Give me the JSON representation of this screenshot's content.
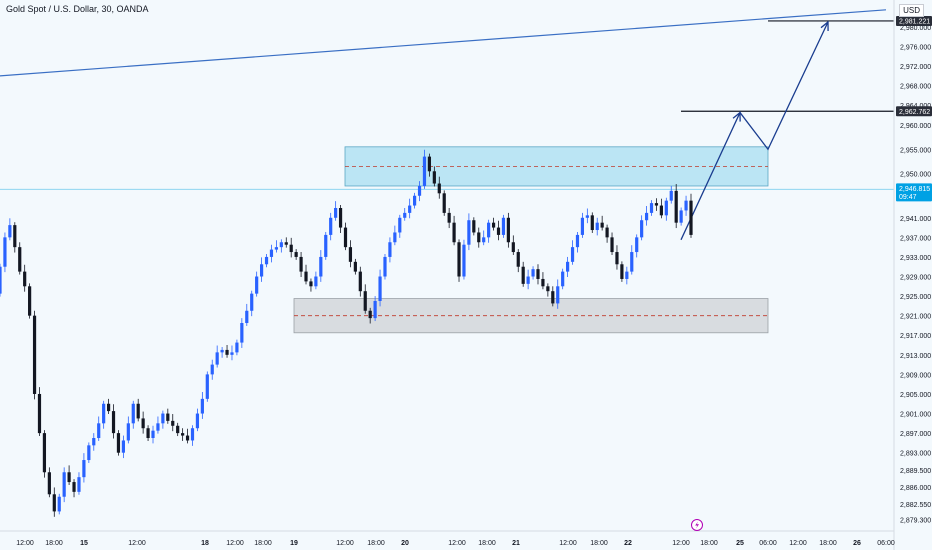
{
  "header": {
    "title": "Gold Spot / U.S. Dollar, 30, OANDA",
    "currency": "USD"
  },
  "colors": {
    "up": "#2962ff",
    "down": "#131722",
    "resistance_zone": "#a8def0",
    "support_zone": "#cfd2d6",
    "projection": "#1a3d8f",
    "background": "#f3f9fd",
    "current_price_tag": "#00a1e4",
    "dark_tag": "#2a2e39",
    "event_icon": "#b000b5"
  },
  "chart_data": {
    "type": "candlestick",
    "title": "Gold Spot / U.S. Dollar, 30, OANDA",
    "ylim": [
      2877.0,
      2985.5
    ],
    "y_ticks": [
      2879.3,
      2882.55,
      2886.0,
      2889.5,
      2893.0,
      2897.0,
      2901.0,
      2905.0,
      2909.0,
      2913.0,
      2917.0,
      2921.0,
      2925.0,
      2929.0,
      2933.0,
      2937.0,
      2941.0,
      2950.0,
      2955.0,
      2960.0,
      2964.0,
      2968.0,
      2972.0,
      2976.0,
      2980.0
    ],
    "y_tick_labels": [
      "2,879.300",
      "2,882.550",
      "2,886.000",
      "2,889.500",
      "2,893.000",
      "2,897.000",
      "2,901.000",
      "2,905.000",
      "2,909.000",
      "2,913.000",
      "2,917.000",
      "2,921.000",
      "2,925.000",
      "2,929.000",
      "2,933.000",
      "2,937.000",
      "2,941.000",
      "2,950.000",
      "2,955.000",
      "2,960.000",
      "2,964.000",
      "2,968.000",
      "2,972.000",
      "2,976.000",
      "2,980.000"
    ],
    "x_ticks": [
      "12:00",
      "18:00",
      "15",
      "12:00",
      "18",
      "12:00",
      "18:00",
      "19",
      "12:00",
      "18:00",
      "20",
      "12:00",
      "18:00",
      "21",
      "12:00",
      "18:00",
      "22",
      "12:00",
      "18:00",
      "25",
      "06:00",
      "12:00",
      "18:00",
      "26",
      "06:00"
    ],
    "bold_x_ticks": [
      "15",
      "18",
      "19",
      "20",
      "21",
      "22",
      "25",
      "26"
    ],
    "price_path": [
      [
        2925.5,
        2931.0,
        2937.0,
        2939.5,
        2935.0,
        2930.0,
        2927.0,
        2921.0,
        2905.0,
        2897.0,
        2889.0,
        2884.5,
        2881.0,
        2884.0,
        2889.0,
        2887.0,
        2885.0,
        2888.0,
        2891.5,
        2894.5,
        2896.0,
        2899.0,
        2903.0,
        2901.5,
        2897.0,
        2893.0,
        2895.5,
        2899.0,
        2903.0,
        2900.0,
        2898.0,
        2896.0,
        2897.5,
        2899.0,
        2901.0,
        2899.5,
        2898.5,
        2897.0,
        2896.5,
        2895.5,
        2898.0,
        2901.0,
        2904.0,
        2909.0,
        2911.0,
        2913.5,
        2914.0,
        2913.0,
        2913.5,
        2915.5,
        2919.5,
        2922.0,
        2925.5,
        2929.0,
        2931.5,
        2933.0,
        2934.5,
        2935.0,
        2936.0,
        2935.5,
        2934.0,
        2933.0,
        2930.0,
        2928.0,
        2927.0,
        2929.0,
        2933.0,
        2937.5,
        2941.0,
        2943.0,
        2939.0,
        2935.0,
        2932.0,
        2930.0,
        2926.0,
        2922.0,
        2920.5,
        2924.0,
        2929.0,
        2933.0,
        2936.0,
        2938.0,
        2941.0,
        2942.0,
        2943.5,
        2945.5,
        2947.5,
        2953.5,
        2950.5,
        2948.0,
        2946.0,
        2942.0,
        2940.0,
        2936.0,
        2929.0,
        2935.5,
        2940.5,
        2938.0,
        2936.0,
        2937.0,
        2940.0,
        2939.0,
        2937.5,
        2941.0,
        2936.0,
        2934.0,
        2931.0,
        2927.5,
        2929.0,
        2930.5,
        2928.5,
        2927.0,
        2926.0,
        2923.5,
        2927.0,
        2930.0,
        2932.0,
        2935.0,
        2937.5,
        2941.0,
        2941.5,
        2938.5,
        2940.0,
        2939.0,
        2937.0,
        2934.0,
        2931.5,
        2928.5,
        2930.0,
        2934.0,
        2937.0,
        2940.5,
        2942.0,
        2944.0,
        2943.5,
        2941.5,
        2944.5,
        2946.5,
        2940.0,
        2942.5,
        2944.5
      ],
      [
        2931.0,
        2937.0,
        2939.5,
        2935.0,
        2930.0,
        2927.0,
        2921.0,
        2905.0,
        2897.0,
        2889.0,
        2884.5,
        2881.0,
        2884.0,
        2889.0,
        2887.0,
        2885.0,
        2888.0,
        2891.5,
        2894.5,
        2896.0,
        2899.0,
        2903.0,
        2901.5,
        2897.0,
        2893.0,
        2895.5,
        2899.0,
        2903.0,
        2900.0,
        2898.0,
        2896.0,
        2897.5,
        2899.0,
        2901.0,
        2899.5,
        2898.5,
        2897.0,
        2896.5,
        2895.5,
        2898.0,
        2901.0,
        2904.0,
        2909.0,
        2911.0,
        2913.5,
        2914.0,
        2913.0,
        2913.5,
        2915.5,
        2919.5,
        2922.0,
        2925.5,
        2929.0,
        2931.5,
        2933.0,
        2934.5,
        2935.0,
        2936.0,
        2935.5,
        2934.0,
        2933.0,
        2930.0,
        2928.0,
        2927.0,
        2929.0,
        2933.0,
        2937.5,
        2941.0,
        2943.0,
        2939.0,
        2935.0,
        2932.0,
        2930.0,
        2926.0,
        2922.0,
        2920.5,
        2924.0,
        2929.0,
        2933.0,
        2936.0,
        2938.0,
        2941.0,
        2942.0,
        2943.5,
        2945.5,
        2947.5,
        2953.5,
        2950.5,
        2948.0,
        2946.0,
        2942.0,
        2940.0,
        2936.0,
        2929.0,
        2935.5,
        2940.5,
        2938.0,
        2936.0,
        2937.0,
        2940.0,
        2939.0,
        2937.5,
        2941.0,
        2936.0,
        2934.0,
        2931.0,
        2927.5,
        2929.0,
        2930.5,
        2928.5,
        2927.0,
        2926.0,
        2923.5,
        2927.0,
        2930.0,
        2932.0,
        2935.0,
        2937.5,
        2941.0,
        2941.5,
        2938.5,
        2940.0,
        2939.0,
        2937.0,
        2934.0,
        2931.5,
        2928.5,
        2930.0,
        2934.0,
        2937.0,
        2940.5,
        2942.0,
        2944.0,
        2943.5,
        2941.5,
        2944.5,
        2946.5,
        2940.0,
        2942.5,
        2944.5,
        2937.5
      ]
    ],
    "resistance_zone": {
      "from": 2947.5,
      "to": 2955.5,
      "mid": 2951.5,
      "x_start": "19 12:00",
      "x_end": "25 06:00"
    },
    "support_zone": {
      "from": 2917.5,
      "to": 2924.5,
      "mid": 2921.0,
      "x_start": "19",
      "x_end": "25 06:00"
    },
    "trendline": {
      "start": [
        "14 09:00",
        2970.0
      ],
      "end": [
        "26 06:00",
        2983.5
      ]
    },
    "target_lines": [
      {
        "price": 2962.762,
        "label": "2,962.762",
        "x_start": "22 12:00",
        "x_end": "26 06:00"
      },
      {
        "price": 2981.221,
        "label": "2,981.221",
        "x_start": "25 06:00",
        "x_end": "26 06:00"
      }
    ],
    "projection_path": [
      [
        "22 12:00",
        2936.5
      ],
      [
        "25 00:00",
        2962.5
      ],
      [
        "25 06:00",
        2955.0
      ],
      [
        "25 18:00",
        2981.0
      ]
    ],
    "current_price": {
      "price": 2946.815,
      "label": "2,946.815",
      "countdown": "09:47"
    },
    "grid": false,
    "legend": "none"
  }
}
